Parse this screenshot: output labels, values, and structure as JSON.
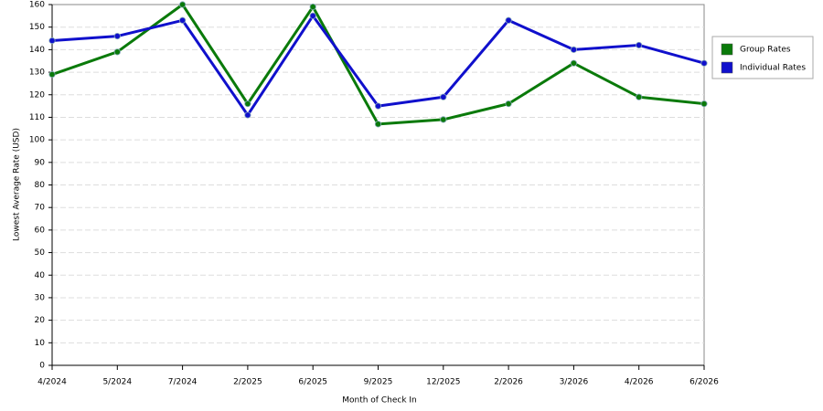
{
  "chart_data": {
    "type": "line",
    "x_label": "Month of Check In",
    "y_label": "Lowest Average Rate (USD)",
    "categories": [
      "4/2024",
      "5/2024",
      "7/2024",
      "2/2025",
      "6/2025",
      "9/2025",
      "12/2025",
      "2/2026",
      "3/2026",
      "4/2026",
      "6/2026"
    ],
    "series": [
      {
        "name": "Group Rates",
        "color": "#0a7a0a",
        "values": [
          129,
          139,
          160,
          116,
          159,
          107,
          109,
          116,
          134,
          119,
          116
        ]
      },
      {
        "name": "Individual Rates",
        "color": "#1010cc",
        "values": [
          144,
          146,
          153,
          111,
          155,
          115,
          119,
          153,
          140,
          142,
          134
        ]
      }
    ],
    "ylim": [
      0,
      160
    ],
    "yticks": [
      0,
      10,
      20,
      30,
      40,
      50,
      60,
      70,
      80,
      90,
      100,
      110,
      120,
      130,
      140,
      150,
      160
    ],
    "grid": true,
    "legend": "right"
  }
}
